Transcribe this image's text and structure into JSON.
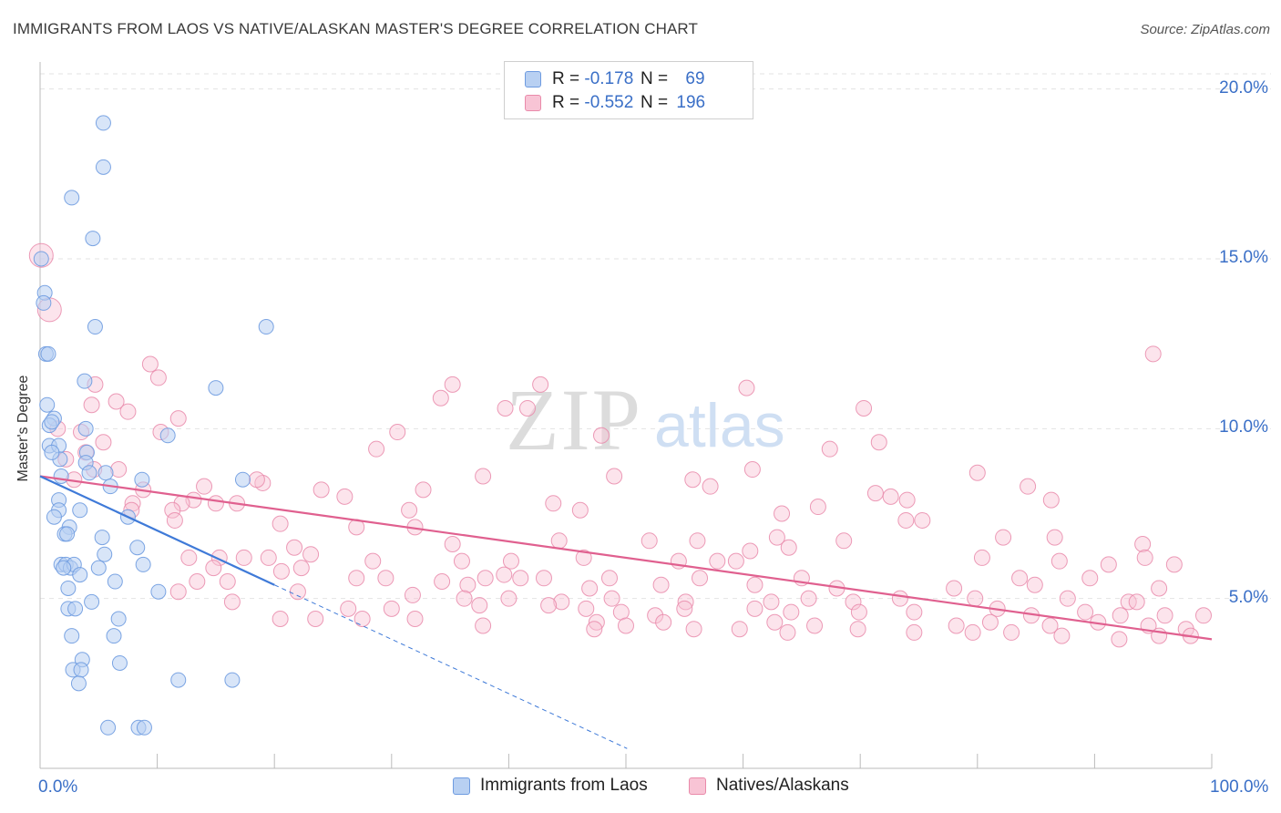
{
  "header": {
    "title": "IMMIGRANTS FROM LAOS VS NATIVE/ALASKAN MASTER'S DEGREE CORRELATION CHART",
    "source": "Source: ZipAtlas.com"
  },
  "watermark": {
    "zip": "ZIP",
    "atlas": "atlas"
  },
  "legend": {
    "items": [
      {
        "r_label": "R =",
        "r_value": "-0.178",
        "n_label": "N =",
        "n_value": "69"
      },
      {
        "r_label": "R =",
        "r_value": "-0.552",
        "n_label": "N =",
        "n_value": "196"
      }
    ]
  },
  "colors": {
    "blue_fill": "#b8d0f2",
    "blue_stroke": "#6e9be0",
    "blue_line": "#3f7ad8",
    "pink_fill": "#f8c4d5",
    "pink_stroke": "#e98aaa",
    "pink_line": "#e0608f",
    "accent_text": "#3a6fc7",
    "grid": "#e3e3e3"
  },
  "chart_data": {
    "type": "scatter",
    "title": "IMMIGRANTS FROM LAOS VS NATIVE/ALASKAN MASTER'S DEGREE CORRELATION CHART",
    "xlabel": "",
    "ylabel": "Master's Degree",
    "xlim": [
      0,
      100
    ],
    "ylim": [
      0,
      20.5
    ],
    "x_tick_labels": [
      "0.0%",
      "100.0%"
    ],
    "y_ticks": [
      5,
      10,
      15,
      20
    ],
    "y_tick_labels": [
      "5.0%",
      "10.0%",
      "15.0%",
      "20.0%"
    ],
    "grid": true,
    "legend_position": "bottom-center",
    "series": [
      {
        "name": "Immigrants from Laos",
        "color": "blue",
        "trend": {
          "x0": 0,
          "y0": 8.6,
          "x1": 20,
          "y1": 5.4,
          "dashed_to_x": 50.1
        },
        "points": [
          [
            5.4,
            19.0
          ],
          [
            5.4,
            17.7
          ],
          [
            2.7,
            16.8
          ],
          [
            4.5,
            15.6
          ],
          [
            0.1,
            15.0
          ],
          [
            0.4,
            14.0
          ],
          [
            0.3,
            13.7
          ],
          [
            4.7,
            13.0
          ],
          [
            19.3,
            13.0
          ],
          [
            0.5,
            12.2
          ],
          [
            0.7,
            12.2
          ],
          [
            3.8,
            11.4
          ],
          [
            15.0,
            11.2
          ],
          [
            0.6,
            10.7
          ],
          [
            1.2,
            10.3
          ],
          [
            0.8,
            10.1
          ],
          [
            1.0,
            10.2
          ],
          [
            3.9,
            10.0
          ],
          [
            10.9,
            9.8
          ],
          [
            0.8,
            9.5
          ],
          [
            1.6,
            9.5
          ],
          [
            1.7,
            9.1
          ],
          [
            4.0,
            9.3
          ],
          [
            3.9,
            9.0
          ],
          [
            4.2,
            8.7
          ],
          [
            5.6,
            8.7
          ],
          [
            1.8,
            8.6
          ],
          [
            8.7,
            8.5
          ],
          [
            17.3,
            8.5
          ],
          [
            6.0,
            8.3
          ],
          [
            1.6,
            7.9
          ],
          [
            1.6,
            7.6
          ],
          [
            3.4,
            7.6
          ],
          [
            1.2,
            7.4
          ],
          [
            7.5,
            7.4
          ],
          [
            2.5,
            7.1
          ],
          [
            2.1,
            6.9
          ],
          [
            2.3,
            6.9
          ],
          [
            5.3,
            6.8
          ],
          [
            8.3,
            6.5
          ],
          [
            5.5,
            6.3
          ],
          [
            1.8,
            6.0
          ],
          [
            2.2,
            6.0
          ],
          [
            2.6,
            5.9
          ],
          [
            2.9,
            6.0
          ],
          [
            8.8,
            6.0
          ],
          [
            5.0,
            5.9
          ],
          [
            3.4,
            5.7
          ],
          [
            6.4,
            5.5
          ],
          [
            2.4,
            5.3
          ],
          [
            10.1,
            5.2
          ],
          [
            4.4,
            4.9
          ],
          [
            2.4,
            4.7
          ],
          [
            3.0,
            4.7
          ],
          [
            6.7,
            4.4
          ],
          [
            2.7,
            3.9
          ],
          [
            6.3,
            3.9
          ],
          [
            3.6,
            3.2
          ],
          [
            6.8,
            3.1
          ],
          [
            2.8,
            2.9
          ],
          [
            3.5,
            2.9
          ],
          [
            11.8,
            2.6
          ],
          [
            16.4,
            2.6
          ],
          [
            3.3,
            2.5
          ],
          [
            5.8,
            1.2
          ],
          [
            8.4,
            1.2
          ],
          [
            8.9,
            1.2
          ],
          [
            1.0,
            9.3
          ],
          [
            2.0,
            5.9
          ]
        ]
      },
      {
        "name": "Natives/Alaskans",
        "color": "pink",
        "trend": {
          "x0": 0,
          "y0": 8.6,
          "x1": 100,
          "y1": 3.8
        },
        "points": [
          [
            0.1,
            15.1
          ],
          [
            0.8,
            13.5
          ],
          [
            95.0,
            12.2
          ],
          [
            9.4,
            11.9
          ],
          [
            10.1,
            11.5
          ],
          [
            4.7,
            11.3
          ],
          [
            35.2,
            11.3
          ],
          [
            42.7,
            11.3
          ],
          [
            60.3,
            11.2
          ],
          [
            34.2,
            10.9
          ],
          [
            4.4,
            10.7
          ],
          [
            6.5,
            10.8
          ],
          [
            39.7,
            10.6
          ],
          [
            41.6,
            10.6
          ],
          [
            70.3,
            10.6
          ],
          [
            7.5,
            10.5
          ],
          [
            11.8,
            10.3
          ],
          [
            1.5,
            10.0
          ],
          [
            3.5,
            9.9
          ],
          [
            10.3,
            9.9
          ],
          [
            30.5,
            9.9
          ],
          [
            47.9,
            9.8
          ],
          [
            5.4,
            9.6
          ],
          [
            71.6,
            9.6
          ],
          [
            28.7,
            9.4
          ],
          [
            67.4,
            9.4
          ],
          [
            2.2,
            9.1
          ],
          [
            3.9,
            9.3
          ],
          [
            4.6,
            8.8
          ],
          [
            6.7,
            8.8
          ],
          [
            60.8,
            8.8
          ],
          [
            80.0,
            8.7
          ],
          [
            37.8,
            8.6
          ],
          [
            49.0,
            8.6
          ],
          [
            55.7,
            8.5
          ],
          [
            2.9,
            8.5
          ],
          [
            19.0,
            8.4
          ],
          [
            18.5,
            8.5
          ],
          [
            32.7,
            8.2
          ],
          [
            84.3,
            8.3
          ],
          [
            8.8,
            8.2
          ],
          [
            14.0,
            8.3
          ],
          [
            24.0,
            8.2
          ],
          [
            71.3,
            8.1
          ],
          [
            72.6,
            8.0
          ],
          [
            57.2,
            8.3
          ],
          [
            26.0,
            8.0
          ],
          [
            13.1,
            7.9
          ],
          [
            15.0,
            7.8
          ],
          [
            16.8,
            7.8
          ],
          [
            12.1,
            7.8
          ],
          [
            7.9,
            7.8
          ],
          [
            43.8,
            7.8
          ],
          [
            74.0,
            7.9
          ],
          [
            86.3,
            7.9
          ],
          [
            7.8,
            7.6
          ],
          [
            11.3,
            7.6
          ],
          [
            31.5,
            7.6
          ],
          [
            46.1,
            7.6
          ],
          [
            66.4,
            7.7
          ],
          [
            11.5,
            7.3
          ],
          [
            20.5,
            7.2
          ],
          [
            63.3,
            7.5
          ],
          [
            73.9,
            7.3
          ],
          [
            75.3,
            7.3
          ],
          [
            27.0,
            7.1
          ],
          [
            32.0,
            7.1
          ],
          [
            52.0,
            6.7
          ],
          [
            56.1,
            6.7
          ],
          [
            62.9,
            6.8
          ],
          [
            68.6,
            6.7
          ],
          [
            82.2,
            6.8
          ],
          [
            86.6,
            6.8
          ],
          [
            94.1,
            6.6
          ],
          [
            21.7,
            6.5
          ],
          [
            23.1,
            6.3
          ],
          [
            35.2,
            6.6
          ],
          [
            44.3,
            6.7
          ],
          [
            60.6,
            6.4
          ],
          [
            63.9,
            6.5
          ],
          [
            12.7,
            6.2
          ],
          [
            15.3,
            6.2
          ],
          [
            17.4,
            6.2
          ],
          [
            19.5,
            6.2
          ],
          [
            28.4,
            6.1
          ],
          [
            36.0,
            6.1
          ],
          [
            40.2,
            6.1
          ],
          [
            46.4,
            6.2
          ],
          [
            54.5,
            6.1
          ],
          [
            57.8,
            6.1
          ],
          [
            59.4,
            6.1
          ],
          [
            80.4,
            6.2
          ],
          [
            87.0,
            6.1
          ],
          [
            91.2,
            6.0
          ],
          [
            94.3,
            6.2
          ],
          [
            96.8,
            6.0
          ],
          [
            14.8,
            5.9
          ],
          [
            20.6,
            5.8
          ],
          [
            22.3,
            5.9
          ],
          [
            27.0,
            5.6
          ],
          [
            34.3,
            5.5
          ],
          [
            38.0,
            5.6
          ],
          [
            39.6,
            5.7
          ],
          [
            43.0,
            5.6
          ],
          [
            48.6,
            5.6
          ],
          [
            56.3,
            5.6
          ],
          [
            65.0,
            5.6
          ],
          [
            83.6,
            5.6
          ],
          [
            89.6,
            5.6
          ],
          [
            13.4,
            5.5
          ],
          [
            16.0,
            5.5
          ],
          [
            29.5,
            5.6
          ],
          [
            36.5,
            5.4
          ],
          [
            41.0,
            5.6
          ],
          [
            46.9,
            5.3
          ],
          [
            53.0,
            5.4
          ],
          [
            61.0,
            5.4
          ],
          [
            68.0,
            5.3
          ],
          [
            78.0,
            5.3
          ],
          [
            84.9,
            5.4
          ],
          [
            95.5,
            5.3
          ],
          [
            11.8,
            5.2
          ],
          [
            22.0,
            5.2
          ],
          [
            31.8,
            5.1
          ],
          [
            36.2,
            5.0
          ],
          [
            40.0,
            5.0
          ],
          [
            44.5,
            4.9
          ],
          [
            48.8,
            5.0
          ],
          [
            55.1,
            4.9
          ],
          [
            62.4,
            4.9
          ],
          [
            65.6,
            5.0
          ],
          [
            69.4,
            4.9
          ],
          [
            73.4,
            5.0
          ],
          [
            79.8,
            5.0
          ],
          [
            87.7,
            5.0
          ],
          [
            92.9,
            4.9
          ],
          [
            93.6,
            4.9
          ],
          [
            16.4,
            4.9
          ],
          [
            26.3,
            4.7
          ],
          [
            30.0,
            4.7
          ],
          [
            37.5,
            4.8
          ],
          [
            43.4,
            4.8
          ],
          [
            46.6,
            4.7
          ],
          [
            49.6,
            4.6
          ],
          [
            52.5,
            4.5
          ],
          [
            55.0,
            4.7
          ],
          [
            61.0,
            4.7
          ],
          [
            64.1,
            4.6
          ],
          [
            69.9,
            4.6
          ],
          [
            74.6,
            4.6
          ],
          [
            81.7,
            4.7
          ],
          [
            84.6,
            4.5
          ],
          [
            89.2,
            4.6
          ],
          [
            92.2,
            4.5
          ],
          [
            96.0,
            4.5
          ],
          [
            99.3,
            4.5
          ],
          [
            20.5,
            4.4
          ],
          [
            23.5,
            4.4
          ],
          [
            27.5,
            4.4
          ],
          [
            32.0,
            4.4
          ],
          [
            37.8,
            4.2
          ],
          [
            47.5,
            4.3
          ],
          [
            50.0,
            4.2
          ],
          [
            53.2,
            4.3
          ],
          [
            62.7,
            4.3
          ],
          [
            66.1,
            4.2
          ],
          [
            78.2,
            4.2
          ],
          [
            81.1,
            4.3
          ],
          [
            86.2,
            4.2
          ],
          [
            90.3,
            4.3
          ],
          [
            94.6,
            4.2
          ],
          [
            97.8,
            4.1
          ],
          [
            47.3,
            4.1
          ],
          [
            55.8,
            4.1
          ],
          [
            59.7,
            4.1
          ],
          [
            63.8,
            4.0
          ],
          [
            69.8,
            4.1
          ],
          [
            74.6,
            4.0
          ],
          [
            79.6,
            4.0
          ],
          [
            82.9,
            4.0
          ],
          [
            87.2,
            3.9
          ],
          [
            92.1,
            3.8
          ],
          [
            95.5,
            3.9
          ],
          [
            98.2,
            3.9
          ]
        ]
      }
    ]
  },
  "bottom_legend": {
    "series_a": "Immigrants from Laos",
    "series_b": "Natives/Alaskans"
  },
  "axis": {
    "x_left": "0.0%",
    "x_right": "100.0%"
  }
}
